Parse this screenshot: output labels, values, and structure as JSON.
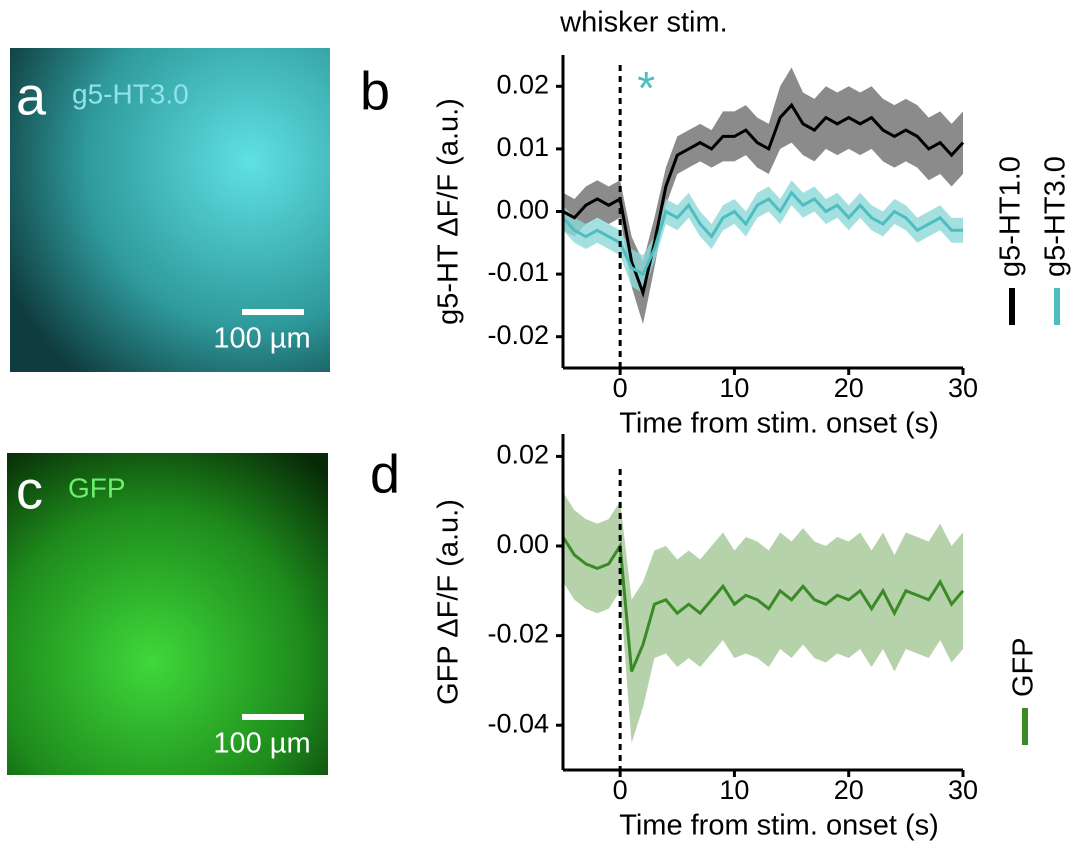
{
  "panels": [
    {
      "letter": "a",
      "label": "g5-HT3.0",
      "scale_bar": "100 µm"
    },
    {
      "letter": "c",
      "label": "GFP",
      "scale_bar": "100 µm"
    }
  ],
  "chart_data": [
    {
      "type": "line",
      "panel": "b",
      "title": "whisker stim.",
      "annotation": "*",
      "annotation_color": "#4dbdc0",
      "xlabel": "Time from stim. onset (s)",
      "ylabel": "g5-HT ΔF/F (a.u.)",
      "x": [
        -5,
        -4,
        -3,
        -2,
        -1,
        0,
        1,
        2,
        3,
        4,
        5,
        6,
        7,
        8,
        9,
        10,
        11,
        12,
        13,
        14,
        15,
        16,
        17,
        18,
        19,
        20,
        21,
        22,
        23,
        24,
        25,
        26,
        27,
        28,
        29,
        30
      ],
      "event_x": 0,
      "xlim": [
        -5,
        30
      ],
      "xticks": [
        0,
        10,
        20,
        30
      ],
      "ylim": [
        -0.025,
        0.025
      ],
      "yticks": [
        -0.02,
        -0.01,
        {
          "value": 0,
          "label": "0.00"
        },
        0.01,
        0.02
      ],
      "series": [
        {
          "name": "g5-HT1.0",
          "color": "#000000",
          "band_color": "#6e6e6e",
          "values": [
            0.0,
            -0.001,
            0.001,
            0.002,
            0.001,
            0.002,
            -0.008,
            -0.013,
            -0.005,
            0.004,
            0.009,
            0.01,
            0.011,
            0.01,
            0.012,
            0.012,
            0.013,
            0.011,
            0.01,
            0.015,
            0.017,
            0.014,
            0.013,
            0.015,
            0.014,
            0.015,
            0.014,
            0.015,
            0.013,
            0.012,
            0.013,
            0.012,
            0.01,
            0.011,
            0.009,
            0.011
          ],
          "error": [
            0.003,
            0.003,
            0.003,
            0.003,
            0.003,
            0.003,
            0.004,
            0.005,
            0.004,
            0.003,
            0.003,
            0.003,
            0.003,
            0.003,
            0.004,
            0.004,
            0.004,
            0.004,
            0.004,
            0.005,
            0.006,
            0.005,
            0.005,
            0.005,
            0.005,
            0.005,
            0.005,
            0.005,
            0.005,
            0.005,
            0.005,
            0.005,
            0.005,
            0.005,
            0.005,
            0.005
          ]
        },
        {
          "name": "g5-HT3.0",
          "color": "#4dbdc0",
          "band_color": "#8fd8da",
          "values": [
            -0.001,
            -0.003,
            -0.004,
            -0.003,
            -0.004,
            -0.005,
            -0.009,
            -0.01,
            -0.006,
            0.0,
            -0.001,
            0.001,
            -0.002,
            -0.004,
            -0.001,
            0.0,
            -0.002,
            0.001,
            0.002,
            0.0,
            0.003,
            0.001,
            0.002,
            0.0,
            0.001,
            -0.001,
            0.001,
            -0.001,
            -0.002,
            0.0,
            -0.001,
            -0.003,
            -0.002,
            -0.001,
            -0.003,
            -0.003
          ],
          "error": [
            0.002,
            0.002,
            0.002,
            0.002,
            0.002,
            0.002,
            0.003,
            0.003,
            0.002,
            0.002,
            0.002,
            0.002,
            0.002,
            0.002,
            0.002,
            0.002,
            0.002,
            0.002,
            0.002,
            0.002,
            0.002,
            0.002,
            0.002,
            0.002,
            0.002,
            0.002,
            0.002,
            0.002,
            0.002,
            0.002,
            0.002,
            0.002,
            0.002,
            0.002,
            0.002,
            0.002
          ]
        }
      ]
    },
    {
      "type": "line",
      "panel": "d",
      "xlabel": "Time from stim. onset (s)",
      "ylabel": "GFP ΔF/F (a.u.)",
      "x": [
        -5,
        -4,
        -3,
        -2,
        -1,
        0,
        1,
        2,
        3,
        4,
        5,
        6,
        7,
        8,
        9,
        10,
        11,
        12,
        13,
        14,
        15,
        16,
        17,
        18,
        19,
        20,
        21,
        22,
        23,
        24,
        25,
        26,
        27,
        28,
        29,
        30
      ],
      "event_x": 0,
      "xlim": [
        -5,
        30
      ],
      "xticks": [
        0,
        10,
        20,
        30
      ],
      "ylim": [
        -0.05,
        0.025
      ],
      "yticks": [
        -0.04,
        -0.02,
        {
          "value": 0,
          "label": "0.00"
        },
        0.02
      ],
      "series": [
        {
          "name": "GFP",
          "color": "#3a8a25",
          "band_color": "#a3c796",
          "values": [
            0.002,
            -0.002,
            -0.004,
            -0.005,
            -0.004,
            0.0,
            -0.028,
            -0.022,
            -0.013,
            -0.012,
            -0.015,
            -0.013,
            -0.015,
            -0.012,
            -0.009,
            -0.013,
            -0.011,
            -0.012,
            -0.014,
            -0.01,
            -0.012,
            -0.009,
            -0.012,
            -0.013,
            -0.011,
            -0.012,
            -0.01,
            -0.014,
            -0.01,
            -0.015,
            -0.01,
            -0.011,
            -0.012,
            -0.008,
            -0.013,
            -0.01
          ],
          "error": [
            0.01,
            0.01,
            0.01,
            0.01,
            0.01,
            0.01,
            0.016,
            0.014,
            0.012,
            0.012,
            0.012,
            0.012,
            0.012,
            0.012,
            0.012,
            0.012,
            0.013,
            0.013,
            0.013,
            0.013,
            0.013,
            0.013,
            0.013,
            0.013,
            0.013,
            0.013,
            0.013,
            0.013,
            0.013,
            0.013,
            0.013,
            0.013,
            0.013,
            0.013,
            0.013,
            0.013
          ]
        }
      ]
    }
  ]
}
